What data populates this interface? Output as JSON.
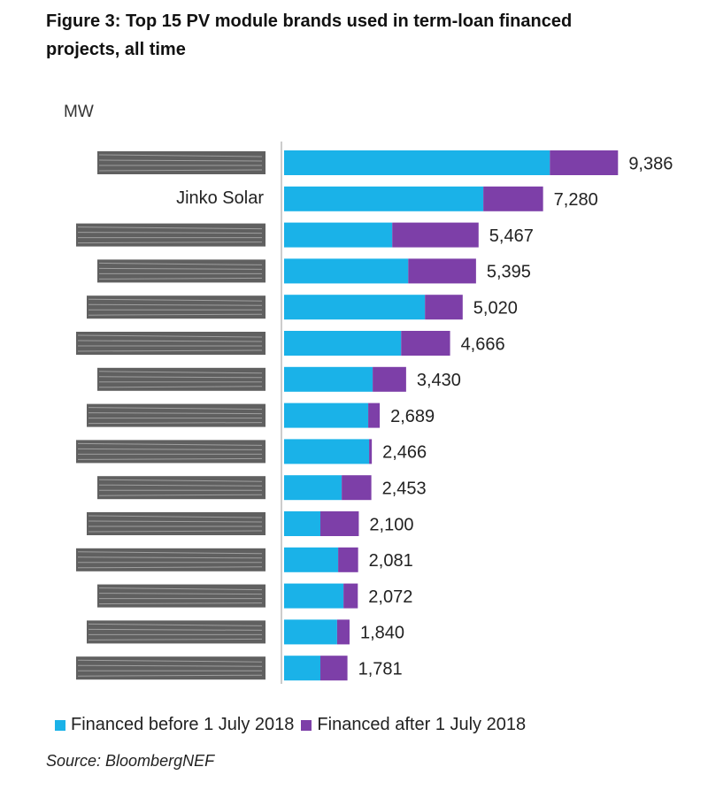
{
  "chart_data": {
    "type": "stacked-barh",
    "title": "Figure 3:  Top 15 PV module brands used in term-loan financed projects, all time",
    "y_label": "MW",
    "categories": [
      null,
      "Jinko Solar",
      null,
      null,
      null,
      null,
      null,
      null,
      null,
      null,
      null,
      null,
      null,
      null,
      null
    ],
    "series": [
      {
        "name": "Financed before 1 July 2018",
        "color": "#1ab2e8",
        "values": [
          7470,
          5600,
          3040,
          3490,
          3960,
          3290,
          2490,
          2365,
          2390,
          1620,
          1020,
          1520,
          1670,
          1490,
          1020
        ]
      },
      {
        "name": "Financed after 1 July 2018",
        "color": "#7d3fa8",
        "values": [
          1916,
          1680,
          2427,
          1905,
          1060,
          1376,
          940,
          324,
          76,
          833,
          1080,
          561,
          402,
          350,
          761
        ]
      }
    ],
    "totals": [
      {
        "value": 9386,
        "label": "9,386"
      },
      {
        "value": 7280,
        "label": "7,280"
      },
      {
        "value": 5467,
        "label": "5,467"
      },
      {
        "value": 5395,
        "label": "5,395"
      },
      {
        "value": 5020,
        "label": "5,020"
      },
      {
        "value": 4666,
        "label": "4,666"
      },
      {
        "value": 3430,
        "label": "3,430"
      },
      {
        "value": 2689,
        "label": "2,689"
      },
      {
        "value": 2466,
        "label": "2,466"
      },
      {
        "value": 2453,
        "label": "2,453"
      },
      {
        "value": 2100,
        "label": "2,100"
      },
      {
        "value": 2081,
        "label": "2,081"
      },
      {
        "value": 2072,
        "label": "2,072"
      },
      {
        "value": 1840,
        "label": "1,840"
      },
      {
        "value": 1781,
        "label": "1,781"
      }
    ],
    "xlim": [
      0,
      10000
    ],
    "source": "Source: BloombergNEF"
  }
}
